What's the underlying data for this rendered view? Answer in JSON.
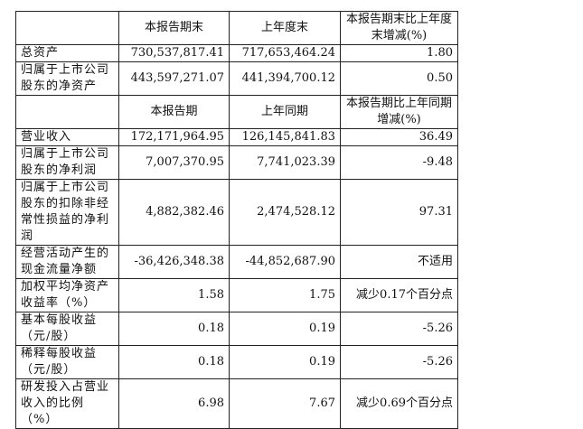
{
  "header1": {
    "c1": "本报告期末",
    "c2": "上年度末",
    "c3": "本报告期末比上年度末增减(%)"
  },
  "rows1": [
    {
      "label": "总资产",
      "v1": "730,537,817.41",
      "v2": "717,653,464.24",
      "v3": "1.80"
    },
    {
      "label": "归属于上市公司股东的净资产",
      "v1": "443,597,271.07",
      "v2": "441,394,700.12",
      "v3": "0.50"
    }
  ],
  "header2": {
    "c1": "本报告期",
    "c2": "上年同期",
    "c3": "本报告期比上年同期增减(%)"
  },
  "rows2": [
    {
      "label": "营业收入",
      "v1": "172,171,964.95",
      "v2": "126,145,841.83",
      "v3": "36.49"
    },
    {
      "label": "归属于上市公司股东的净利润",
      "v1": "7,007,370.95",
      "v2": "7,741,023.39",
      "v3": "-9.48"
    },
    {
      "label": "归属于上市公司股东的扣除非经常性损益的净利润",
      "v1": "4,882,382.46",
      "v2": "2,474,528.12",
      "v3": "97.31"
    },
    {
      "label": "经营活动产生的现金流量净额",
      "v1": "-36,426,348.38",
      "v2": "-44,852,687.90",
      "v3": "不适用"
    },
    {
      "label": "加权平均净资产收益率（%）",
      "v1": "1.58",
      "v2": "1.75",
      "v3": "减少0.17个百分点"
    },
    {
      "label": "基本每股收益（元/股）",
      "v1": "0.18",
      "v2": "0.19",
      "v3": "-5.26"
    },
    {
      "label": "稀释每股收益（元/股）",
      "v1": "0.18",
      "v2": "0.19",
      "v3": "-5.26"
    },
    {
      "label": "研发投入占营业收入的比例（%）",
      "v1": "6.98",
      "v2": "7.67",
      "v3": "减少0.69个百分点"
    }
  ]
}
